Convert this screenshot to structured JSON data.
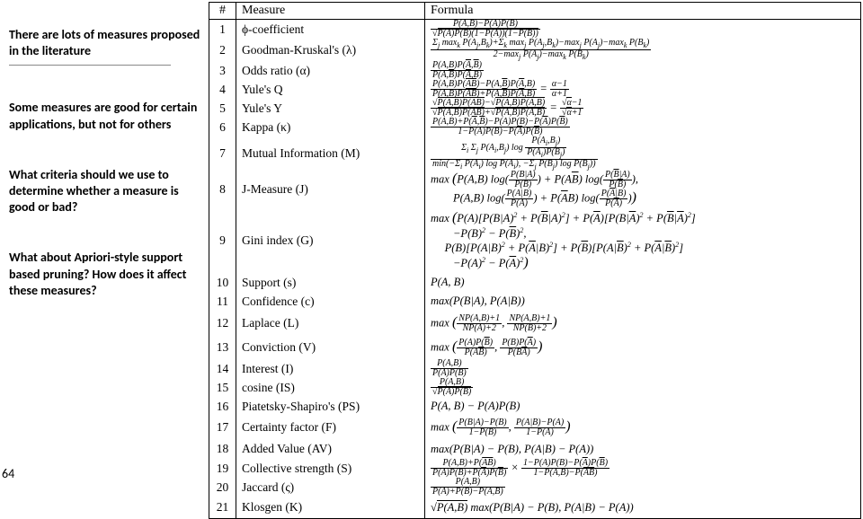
{
  "sidebar": {
    "notes": [
      "There are lots of measures proposed in the literature",
      "Some measures are good for certain applications, but not for others",
      "What criteria should we use to determine whether a measure is good or bad?",
      "What about Apriori-style support based pruning? How does it affect these measures?"
    ]
  },
  "page_number": "64",
  "table": {
    "headers": [
      "#",
      "Measure",
      "Formula"
    ],
    "rows": [
      {
        "n": "1",
        "measure": "ϕ-coefficient",
        "formula_html": "<span class='frac'><span class='num'>P(A,B)−P(A)P(B)</span><span class='den sqrt'><span class='sq'>P(A)P(B)(1−P(A))(1−P(B))</span></span></span>"
      },
      {
        "n": "2",
        "measure": "Goodman-Kruskal's (λ)",
        "formula_html": "<span class='frac'><span class='num'>Σ<span class='sub'>j</span> max<span class='sub'>k</span> P(A<span class='sub'>j</span>,B<span class='sub'>k</span>)+Σ<span class='sub'>k</span> max<span class='sub'>j</span> P(A<span class='sub'>j</span>,B<span class='sub'>k</span>)−max<span class='sub'>j</span> P(A<span class='sub'>j</span>)−max<span class='sub'>k</span> P(B<span class='sub'>k</span>)</span><span class='den'>2−max<span class='sub'>j</span> P(A<span class='sub'>j</span>)−max<span class='sub'>k</span> P(B<span class='sub'>k</span>)</span></span>"
      },
      {
        "n": "3",
        "measure": "Odds ratio (α)",
        "formula_html": "<span class='frac'><span class='num'>P(A,B)P(<span class='ov'>A</span>,<span class='ov'>B</span>)</span><span class='den'>P(A,<span class='ov'>B</span>)P(<span class='ov'>A</span>,B)</span></span>"
      },
      {
        "n": "4",
        "measure": "Yule's Q",
        "formula_html": "<span class='frac'><span class='num'>P(A,B)P(<span class='ov'>AB</span>)−P(A,<span class='ov'>B</span>)P(<span class='ov'>A</span>,B)</span><span class='den'>P(A,B)P(<span class='ov'>AB</span>)+P(A,<span class='ov'>B</span>)P(<span class='ov'>A</span>,B)</span></span> = <span class='frac'><span class='num'>α−1</span><span class='den'>α+1</span></span>"
      },
      {
        "n": "5",
        "measure": "Yule's Y",
        "formula_html": "<span class='frac'><span class='num sqrt'><span class='sq'>P(A,B)P(<span class='ov'>AB</span>)</span>−<span class='sqrt'><span class='sq'>P(A,<span class='ov'>B</span>)P(<span class='ov'>A</span>,B)</span></span></span><span class='den sqrt'><span class='sq'>P(A,B)P(<span class='ov'>AB</span>)</span>+<span class='sqrt'><span class='sq'>P(A,<span class='ov'>B</span>)P(<span class='ov'>A</span>,B)</span></span></span></span> = <span class='frac'><span class='num sqrt'><span class='sq'>α</span>−1</span><span class='den sqrt'><span class='sq'>α</span>+1</span></span>"
      },
      {
        "n": "6",
        "measure": "Kappa (κ)",
        "formula_html": "<span class='frac'><span class='num'>P(A,B)+P(<span class='ov'>A</span>,<span class='ov'>B</span>)−P(A)P(B)−P(<span class='ov'>A</span>)P(<span class='ov'>B</span>)</span><span class='den'>1−P(A)P(B)−P(<span class='ov'>A</span>)P(<span class='ov'>B</span>)</span></span>"
      },
      {
        "n": "7",
        "measure": "Mutual Information (M)",
        "formula_html": "<span class='frac'><span class='num'>Σ<span class='sub'>i</span> Σ<span class='sub'>j</span> P(A<span class='sub'>i</span>,B<span class='sub'>j</span>) log <span class='frac'><span class='num'>P(A<span class='sub'>i</span>,B<span class='sub'>j</span>)</span><span class='den'>P(A<span class='sub'>i</span>)P(B<span class='sub'>j</span>)</span></span></span><span class='den'>min(−Σ<span class='sub'>i</span> P(A<span class='sub'>i</span>) log P(A<span class='sub'>i</span>), −Σ<span class='sub'>j</span> P(B<span class='sub'>j</span>) log P(B<span class='sub'>j</span>))</span></span>"
      },
      {
        "n": "8",
        "measure": "J-Measure (J)",
        "formula_html": "max <span class='big'>(</span>P(A,B) log(<span class='frac'><span class='num'>P(B|A)</span><span class='den'>P(B)</span></span>) + P(A<span class='ov'>B</span>) log(<span class='frac'><span class='num'>P(<span class='ov'>B</span>|A)</span><span class='den'>P(<span class='ov'>B</span>)</span></span>),<br>&nbsp;&nbsp;&nbsp;&nbsp;&nbsp;&nbsp;&nbsp;&nbsp;P(A,B) log(<span class='frac'><span class='num'>P(A|B)</span><span class='den'>P(A)</span></span>) + P(<span class='ov'>A</span>B) log(<span class='frac'><span class='num'>P(<span class='ov'>A</span>|B)</span><span class='den'>P(<span class='ov'>A</span>)</span></span>)<span class='big'>)</span>"
      },
      {
        "n": "9",
        "measure": "Gini index (G)",
        "formula_html": "max <span class='big'>(</span>P(A)[P(B|A)<span class='sup'>2</span> + P(<span class='ov'>B</span>|A)<span class='sup'>2</span>] + P(<span class='ov'>A</span>)[P(B|<span class='ov'>A</span>)<span class='sup'>2</span> + P(<span class='ov'>B</span>|<span class='ov'>A</span>)<span class='sup'>2</span>]<br>&nbsp;&nbsp;&nbsp;&nbsp;&nbsp;&nbsp;&nbsp;&nbsp;−P(B)<span class='sup'>2</span> − P(<span class='ov'>B</span>)<span class='sup'>2</span>,<br>&nbsp;&nbsp;&nbsp;&nbsp;&nbsp;P(B)[P(A|B)<span class='sup'>2</span> + P(<span class='ov'>A</span>|B)<span class='sup'>2</span>] + P(<span class='ov'>B</span>)[P(A|<span class='ov'>B</span>)<span class='sup'>2</span> + P(<span class='ov'>A</span>|<span class='ov'>B</span>)<span class='sup'>2</span>]<br>&nbsp;&nbsp;&nbsp;&nbsp;&nbsp;&nbsp;&nbsp;&nbsp;−P(A)<span class='sup'>2</span> − P(<span class='ov'>A</span>)<span class='sup'>2</span><span class='big'>)</span>"
      },
      {
        "n": "10",
        "measure": "Support (s)",
        "formula_html": "P(A, B)"
      },
      {
        "n": "11",
        "measure": "Confidence (c)",
        "formula_html": "max(P(B|A), P(A|B))"
      },
      {
        "n": "12",
        "measure": "Laplace (L)",
        "formula_html": "max <span class='big'>(</span><span class='frac'><span class='num'>NP(A,B)+1</span><span class='den'>NP(A)+2</span></span>, <span class='frac'><span class='num'>NP(A,B)+1</span><span class='den'>NP(B)+2</span></span><span class='big'>)</span>"
      },
      {
        "n": "13",
        "measure": "Conviction (V)",
        "formula_html": "max <span class='big'>(</span><span class='frac'><span class='num'>P(A)P(<span class='ov'>B</span>)</span><span class='den'>P(A<span class='ov'>B</span>)</span></span>, <span class='frac'><span class='num'>P(B)P(<span class='ov'>A</span>)</span><span class='den'>P(B<span class='ov'>A</span>)</span></span><span class='big'>)</span>"
      },
      {
        "n": "14",
        "measure": "Interest (I)",
        "formula_html": "<span class='frac'><span class='num'>P(A,B)</span><span class='den'>P(A)P(B)</span></span>"
      },
      {
        "n": "15",
        "measure": "cosine (IS)",
        "formula_html": "<span class='frac'><span class='num'>P(A,B)</span><span class='den sqrt'><span class='sq'>P(A)P(B)</span></span></span>"
      },
      {
        "n": "16",
        "measure": "Piatetsky-Shapiro's (PS)",
        "formula_html": "P(A, B) − P(A)P(B)"
      },
      {
        "n": "17",
        "measure": "Certainty factor (F)",
        "formula_html": "max <span class='big'>(</span><span class='frac'><span class='num'>P(B|A)−P(B)</span><span class='den'>1−P(B)</span></span>, <span class='frac'><span class='num'>P(A|B)−P(A)</span><span class='den'>1−P(A)</span></span><span class='big'>)</span>"
      },
      {
        "n": "18",
        "measure": "Added Value (AV)",
        "formula_html": "max(P(B|A) − P(B), P(A|B) − P(A))"
      },
      {
        "n": "19",
        "measure": "Collective strength (S)",
        "formula_html": "<span class='frac'><span class='num'>P(A,B)+P(<span class='ov'>AB</span>)</span><span class='den'>P(A)P(B)+P(<span class='ov'>A</span>)P(<span class='ov'>B</span>)</span></span> × <span class='frac'><span class='num'>1−P(A)P(B)−P(<span class='ov'>A</span>)P(<span class='ov'>B</span>)</span><span class='den'>1−P(A,B)−P(<span class='ov'>AB</span>)</span></span>"
      },
      {
        "n": "20",
        "measure": "Jaccard (ς)",
        "formula_html": "<span class='frac'><span class='num'>P(A,B)</span><span class='den'>P(A)+P(B)−P(A,B)</span></span>"
      },
      {
        "n": "21",
        "measure": "Klosgen (K)",
        "formula_html": "<span class='sqrt'><span class='sq'>P(A,B)</span></span> max(P(B|A) − P(B), P(A|B) − P(A))"
      }
    ]
  }
}
